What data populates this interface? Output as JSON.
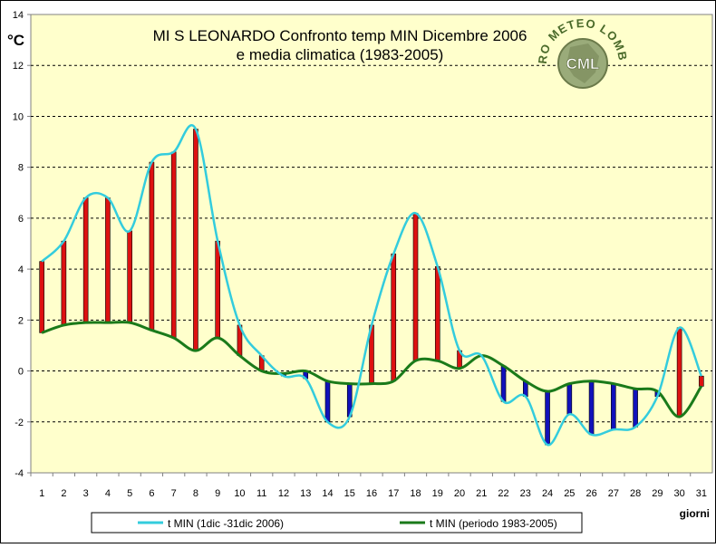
{
  "chart_data": {
    "type": "bar",
    "title_line1": "MI S LEONARDO Confronto temp MIN Dicembre 2006",
    "title_line2": "e media climatica (1983-2005)",
    "ylabel": "°C",
    "xlabel": "giorni",
    "ylim": [
      -4,
      14
    ],
    "yticks": [
      -4,
      -2,
      0,
      2,
      4,
      6,
      8,
      10,
      12,
      14
    ],
    "grid": true,
    "legend_position": "bottom",
    "categories": [
      "1",
      "2",
      "3",
      "4",
      "5",
      "6",
      "7",
      "8",
      "9",
      "10",
      "11",
      "12",
      "13",
      "14",
      "15",
      "16",
      "17",
      "18",
      "19",
      "20",
      "21",
      "22",
      "23",
      "24",
      "25",
      "26",
      "27",
      "28",
      "29",
      "30",
      "31"
    ],
    "series": [
      {
        "name": "t MIN (1dic -31dic 2006)",
        "color": "#33ccdd",
        "values": [
          4.3,
          5.1,
          6.8,
          6.8,
          5.5,
          8.2,
          8.6,
          9.5,
          5.1,
          1.8,
          0.6,
          -0.2,
          -0.3,
          -2.0,
          -1.8,
          1.8,
          4.6,
          6.2,
          4.1,
          0.8,
          0.6,
          -1.2,
          -1.0,
          -2.9,
          -1.7,
          -2.5,
          -2.3,
          -2.2,
          -1.0,
          1.7,
          -0.2
        ]
      },
      {
        "name": "t MIN (periodo 1983-2005)",
        "color": "#1a7a1a",
        "values": [
          1.5,
          1.8,
          1.9,
          1.9,
          1.9,
          1.6,
          1.3,
          0.8,
          1.3,
          0.6,
          0.0,
          -0.1,
          0.0,
          -0.4,
          -0.5,
          -0.5,
          -0.4,
          0.4,
          0.4,
          0.1,
          0.6,
          0.2,
          -0.4,
          -0.8,
          -0.5,
          -0.4,
          -0.5,
          -0.7,
          -0.8,
          -1.8,
          -0.6
        ]
      }
    ],
    "difference_colors": {
      "above": "#dd1111",
      "below": "#1111bb"
    },
    "logo": {
      "text_arc": "CENTRO METEO LOMBARDO",
      "text_center": "CML"
    }
  }
}
